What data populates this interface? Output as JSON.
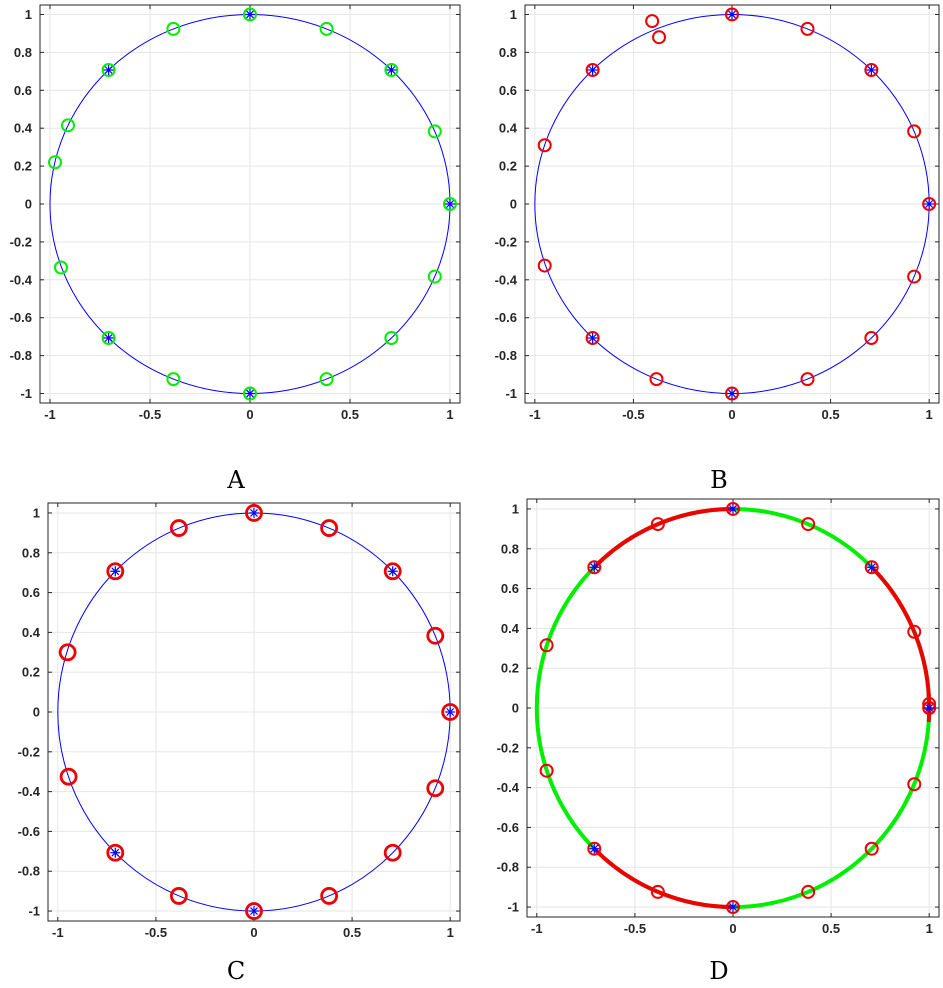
{
  "colors": {
    "circle_thin": "#0000ff",
    "star": "#0000ff",
    "green": "#00ee00",
    "red": "#ee0000",
    "grid": "#e6e6e6",
    "axis": "#262626"
  },
  "chart_data": [
    {
      "type": "scatter",
      "caption": "A",
      "xlim": [
        -1.05,
        1.05
      ],
      "ylim": [
        -1.05,
        1.05
      ],
      "xticks": [
        -1,
        -0.5,
        0,
        0.5,
        1
      ],
      "xtick_labels": [
        "-1",
        "-0.5",
        "0",
        "0.5",
        "1"
      ],
      "yticks": [
        -1,
        -0.8,
        -0.6,
        -0.4,
        -0.2,
        0,
        0.2,
        0.4,
        0.6,
        0.8,
        1
      ],
      "ytick_labels": [
        "-1",
        "-0.8",
        "-0.6",
        "-0.4",
        "-0.2",
        "0",
        "0.2",
        "0.4",
        "0.6",
        "0.8",
        "1"
      ],
      "grid": true,
      "unit_circle": {
        "style": "thin",
        "segments": [
          {
            "from_deg": 0,
            "to_deg": 360,
            "color": "blue"
          }
        ]
      },
      "stars": [
        [
          1,
          0
        ],
        [
          0.707,
          0.707
        ],
        [
          0,
          1
        ],
        [
          -0.707,
          0.707
        ],
        [
          -0.707,
          -0.707
        ],
        [
          0,
          -1
        ]
      ],
      "circle_marker_color": "green",
      "circles": [
        {
          "x": 1,
          "y": 0
        },
        {
          "x": 0.924,
          "y": 0.383
        },
        {
          "x": 0.707,
          "y": 0.707
        },
        {
          "x": 0.383,
          "y": 0.924
        },
        {
          "x": 0,
          "y": 1
        },
        {
          "x": -0.383,
          "y": 0.924
        },
        {
          "x": -0.707,
          "y": 0.707
        },
        {
          "x": -0.91,
          "y": 0.415
        },
        {
          "x": -0.975,
          "y": 0.22
        },
        {
          "x": -0.945,
          "y": -0.335
        },
        {
          "x": -0.707,
          "y": -0.707
        },
        {
          "x": -0.383,
          "y": -0.924
        },
        {
          "x": 0,
          "y": -1
        },
        {
          "x": 0.383,
          "y": -0.924
        },
        {
          "x": 0.707,
          "y": -0.707
        },
        {
          "x": 0.924,
          "y": -0.383
        }
      ]
    },
    {
      "type": "scatter",
      "caption": "B",
      "xlim": [
        -1.05,
        1.05
      ],
      "ylim": [
        -1.05,
        1.05
      ],
      "xticks": [
        -1,
        -0.5,
        0,
        0.5,
        1
      ],
      "xtick_labels": [
        "-1",
        "-0.5",
        "0",
        "0.5",
        "1"
      ],
      "yticks": [
        -1,
        -0.8,
        -0.6,
        -0.4,
        -0.2,
        0,
        0.2,
        0.4,
        0.6,
        0.8,
        1
      ],
      "ytick_labels": [
        "-1",
        "-0.8",
        "-0.6",
        "-0.4",
        "-0.2",
        "0",
        "0.2",
        "0.4",
        "0.6",
        "0.8",
        "1"
      ],
      "grid": true,
      "unit_circle": {
        "style": "thin",
        "segments": [
          {
            "from_deg": 0,
            "to_deg": 360,
            "color": "blue"
          }
        ]
      },
      "stars": [
        [
          1,
          0
        ],
        [
          0.707,
          0.707
        ],
        [
          0,
          1
        ],
        [
          -0.707,
          0.707
        ],
        [
          -0.707,
          -0.707
        ],
        [
          0,
          -1
        ]
      ],
      "circle_marker_color": "red",
      "circles": [
        {
          "x": 1,
          "y": 0
        },
        {
          "x": 0.924,
          "y": 0.383
        },
        {
          "x": 0.707,
          "y": 0.707
        },
        {
          "x": 0.383,
          "y": 0.924
        },
        {
          "x": 0,
          "y": 1
        },
        {
          "x": -0.405,
          "y": 0.965
        },
        {
          "x": -0.37,
          "y": 0.88
        },
        {
          "x": -0.707,
          "y": 0.707
        },
        {
          "x": -0.95,
          "y": 0.31
        },
        {
          "x": -0.95,
          "y": -0.325
        },
        {
          "x": -0.707,
          "y": -0.707
        },
        {
          "x": -0.383,
          "y": -0.924
        },
        {
          "x": 0,
          "y": -1
        },
        {
          "x": 0.383,
          "y": -0.924
        },
        {
          "x": 0.707,
          "y": -0.707
        },
        {
          "x": 0.924,
          "y": -0.383
        }
      ]
    },
    {
      "type": "scatter",
      "caption": "C",
      "xlim": [
        -1.05,
        1.05
      ],
      "ylim": [
        -1.05,
        1.05
      ],
      "xticks": [
        -1,
        -0.5,
        0,
        0.5,
        1
      ],
      "xtick_labels": [
        "-1",
        "-0.5",
        "0",
        "0.5",
        "1"
      ],
      "yticks": [
        -1,
        -0.8,
        -0.6,
        -0.4,
        -0.2,
        0,
        0.2,
        0.4,
        0.6,
        0.8,
        1
      ],
      "ytick_labels": [
        "-1",
        "-0.8",
        "-0.6",
        "-0.4",
        "-0.2",
        "0",
        "0.2",
        "0.4",
        "0.6",
        "0.8",
        "1"
      ],
      "grid": true,
      "unit_circle": {
        "style": "thin",
        "segments": [
          {
            "from_deg": 0,
            "to_deg": 360,
            "color": "blue"
          }
        ]
      },
      "stars": [
        [
          1,
          0
        ],
        [
          0.707,
          0.707
        ],
        [
          0,
          1
        ],
        [
          -0.707,
          0.707
        ],
        [
          -0.707,
          -0.707
        ],
        [
          0,
          -1
        ]
      ],
      "circle_marker_color": "red",
      "bold_markers": true,
      "circles": [
        {
          "x": 1,
          "y": 0
        },
        {
          "x": 0.924,
          "y": 0.383
        },
        {
          "x": 0.707,
          "y": 0.707
        },
        {
          "x": 0.383,
          "y": 0.924
        },
        {
          "x": 0,
          "y": 1
        },
        {
          "x": -0.383,
          "y": 0.924
        },
        {
          "x": -0.707,
          "y": 0.707
        },
        {
          "x": -0.95,
          "y": 0.3
        },
        {
          "x": -0.945,
          "y": -0.325
        },
        {
          "x": -0.707,
          "y": -0.707
        },
        {
          "x": -0.383,
          "y": -0.924
        },
        {
          "x": 0,
          "y": -1
        },
        {
          "x": 0.383,
          "y": -0.924
        },
        {
          "x": 0.707,
          "y": -0.707
        },
        {
          "x": 0.924,
          "y": -0.383
        }
      ]
    },
    {
      "type": "scatter",
      "caption": "D",
      "xlim": [
        -1.05,
        1.05
      ],
      "ylim": [
        -1.05,
        1.05
      ],
      "xticks": [
        -1,
        -0.5,
        0,
        0.5,
        1
      ],
      "xtick_labels": [
        "-1",
        "-0.5",
        "0",
        "0.5",
        "1"
      ],
      "yticks": [
        -1,
        -0.8,
        -0.6,
        -0.4,
        -0.2,
        0,
        0.2,
        0.4,
        0.6,
        0.8,
        1
      ],
      "ytick_labels": [
        "-1",
        "-0.8",
        "-0.6",
        "-0.4",
        "-0.2",
        "0",
        "0.2",
        "0.4",
        "0.6",
        "0.8",
        "1"
      ],
      "grid": true,
      "unit_circle": {
        "style": "thick",
        "segments": [
          {
            "from_deg": 0,
            "to_deg": 45,
            "color": "red"
          },
          {
            "from_deg": 45,
            "to_deg": 90,
            "color": "green"
          },
          {
            "from_deg": 90,
            "to_deg": 225,
            "color": "red"
          },
          {
            "from_deg": 225,
            "to_deg": 270,
            "color": "red"
          },
          {
            "from_deg": 270,
            "to_deg": 315,
            "color": "green"
          },
          {
            "from_deg": 315,
            "to_deg": 360,
            "color": "green"
          },
          {
            "from_deg": 135,
            "to_deg": 225,
            "color": "green"
          }
        ]
      },
      "stars": [
        [
          1,
          0
        ],
        [
          0.707,
          0.707
        ],
        [
          0,
          1
        ],
        [
          -0.707,
          0.707
        ],
        [
          -0.707,
          -0.707
        ],
        [
          0,
          -1
        ]
      ],
      "circle_marker_color": "red",
      "circles": [
        {
          "x": 1,
          "y": 0
        },
        {
          "x": 1,
          "y": 0.02
        },
        {
          "x": 0.924,
          "y": 0.383
        },
        {
          "x": 0.707,
          "y": 0.707
        },
        {
          "x": 0.383,
          "y": 0.924
        },
        {
          "x": 0,
          "y": 1
        },
        {
          "x": -0.383,
          "y": 0.924
        },
        {
          "x": -0.707,
          "y": 0.707
        },
        {
          "x": -0.95,
          "y": 0.315
        },
        {
          "x": -0.95,
          "y": -0.315
        },
        {
          "x": -0.707,
          "y": -0.707
        },
        {
          "x": -0.383,
          "y": -0.924
        },
        {
          "x": 0,
          "y": -1
        },
        {
          "x": 0.383,
          "y": -0.924
        },
        {
          "x": 0.707,
          "y": -0.707
        },
        {
          "x": 0.924,
          "y": -0.383
        }
      ]
    }
  ]
}
